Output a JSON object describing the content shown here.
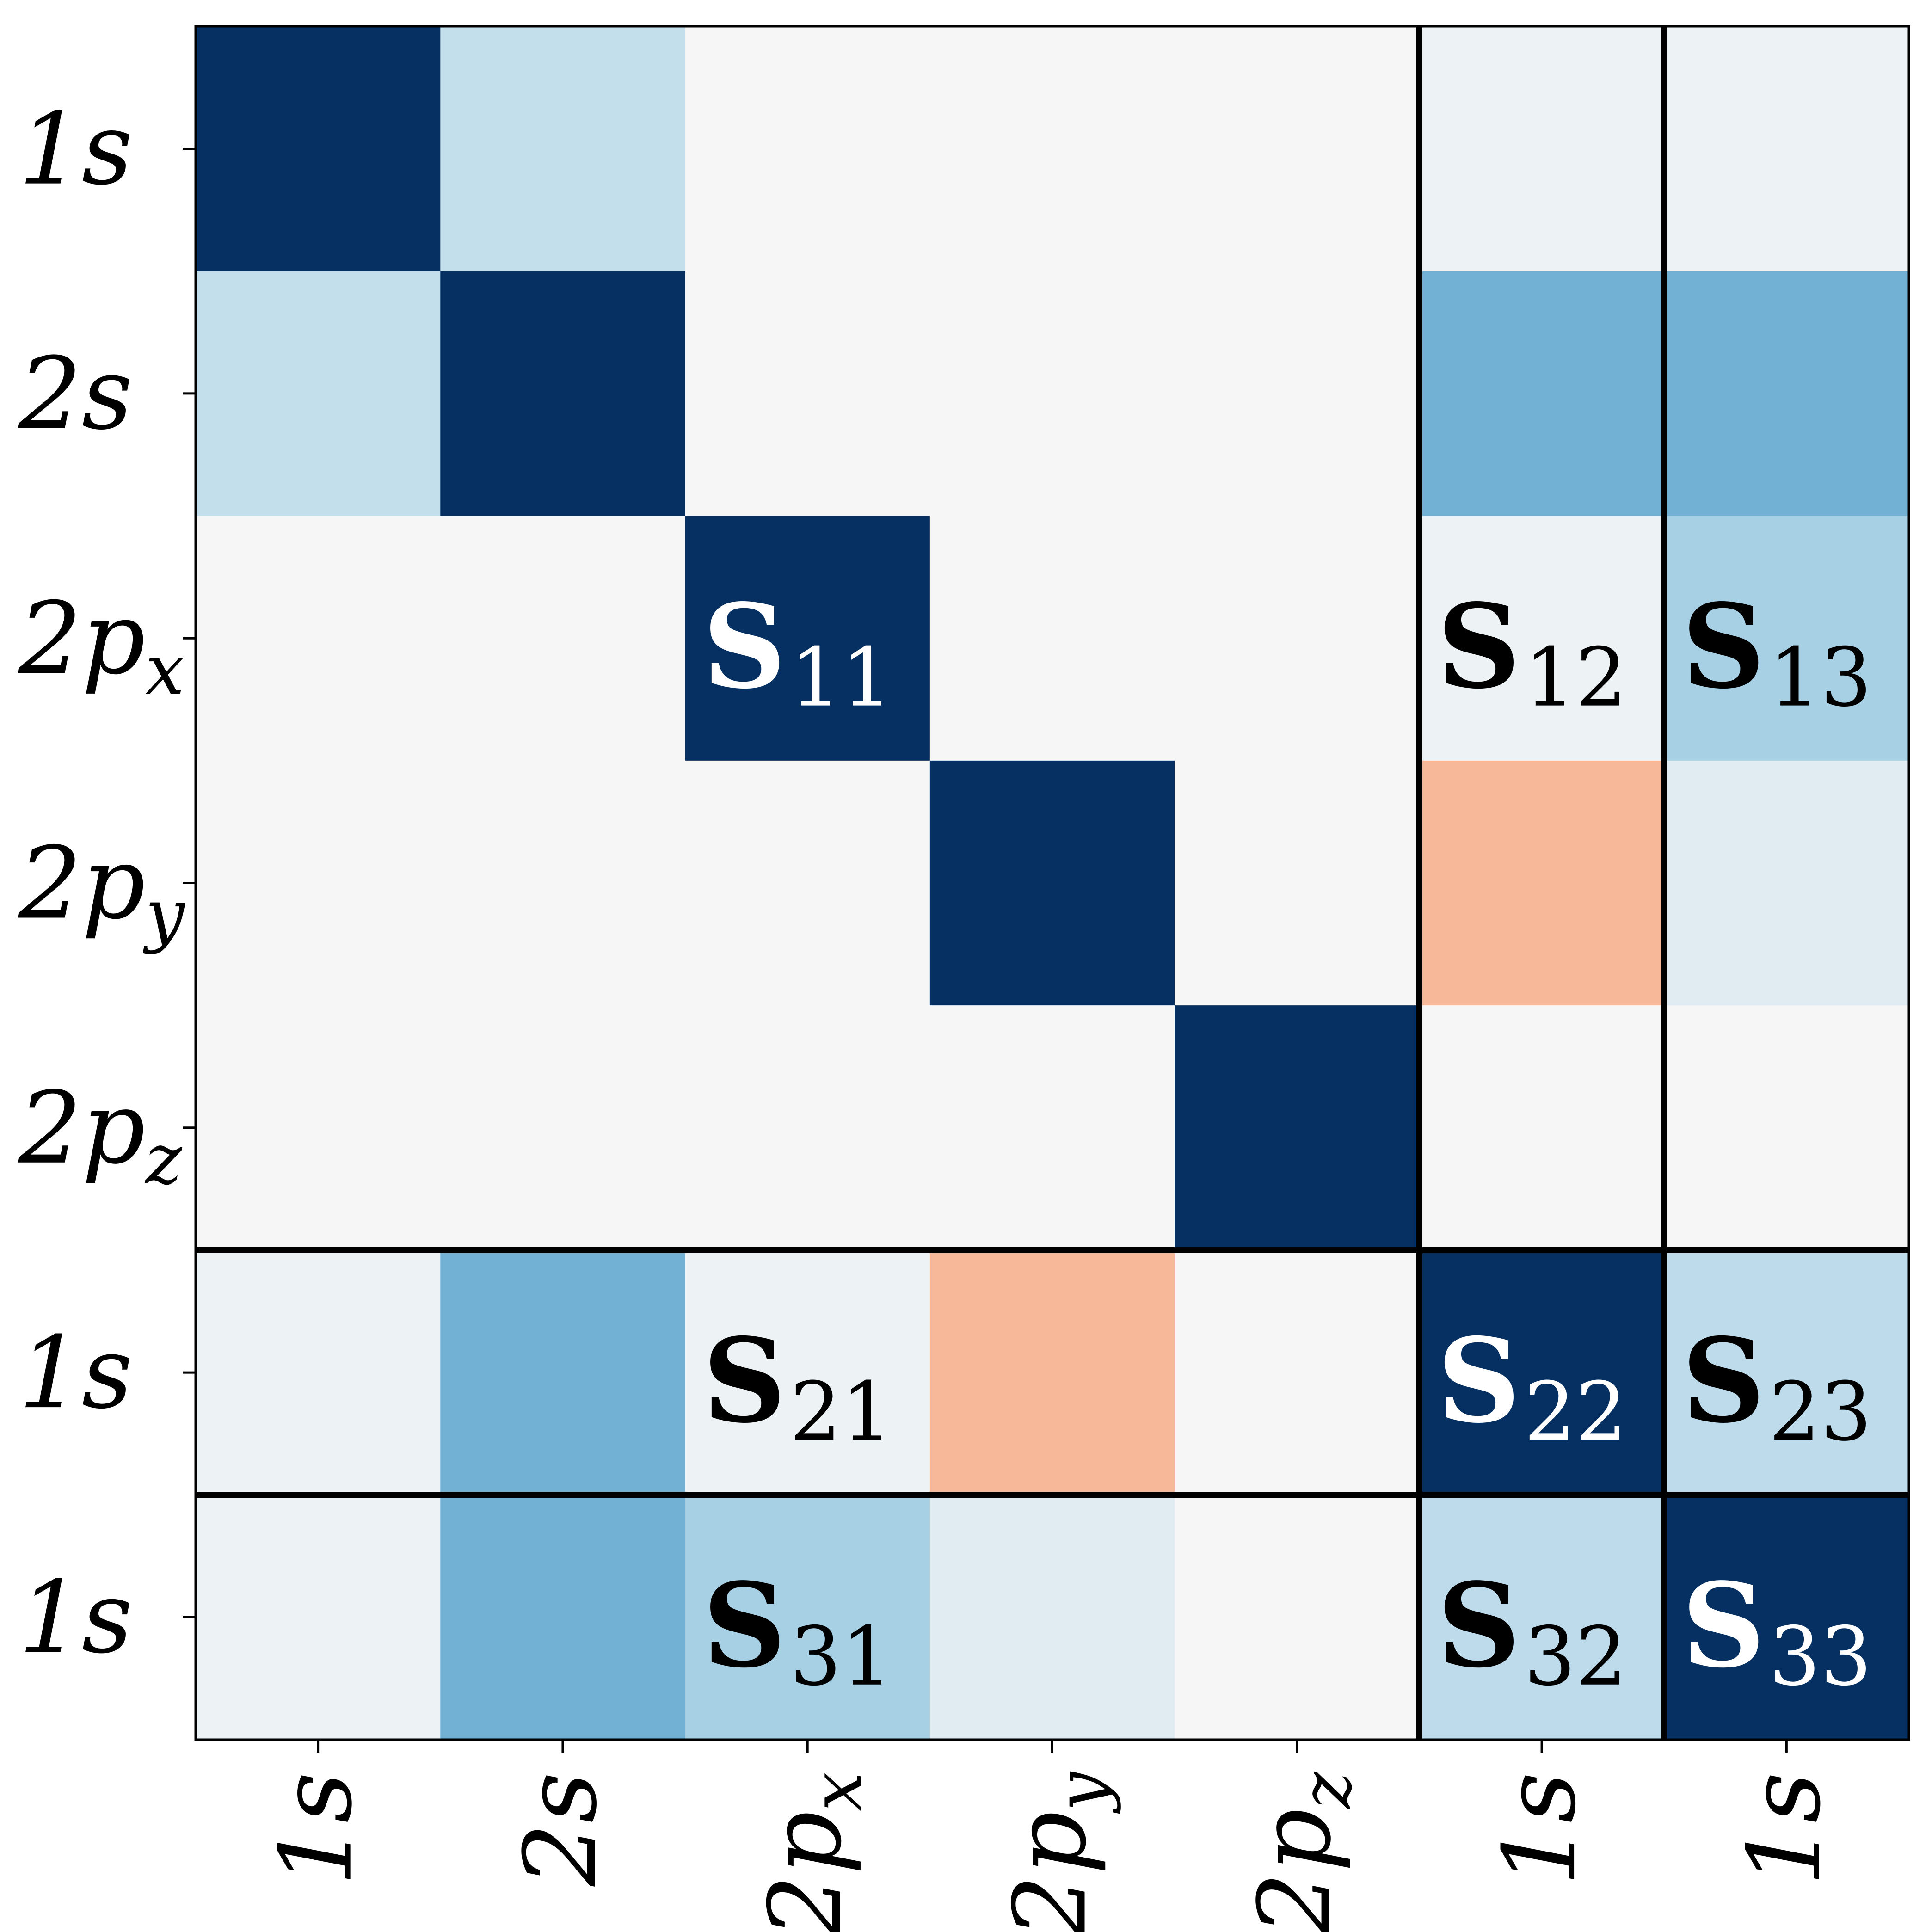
{
  "chart_data": {
    "type": "heatmap",
    "title": "",
    "xlabel": "",
    "ylabel": "",
    "row_labels": [
      {
        "main": "1s",
        "sub": ""
      },
      {
        "main": "2s",
        "sub": ""
      },
      {
        "main": "2p",
        "sub": "x"
      },
      {
        "main": "2p",
        "sub": "y"
      },
      {
        "main": "2p",
        "sub": "z"
      },
      {
        "main": "1s",
        "sub": ""
      },
      {
        "main": "1s",
        "sub": ""
      }
    ],
    "col_labels": [
      {
        "main": "1s",
        "sub": ""
      },
      {
        "main": "2s",
        "sub": ""
      },
      {
        "main": "2p",
        "sub": "x"
      },
      {
        "main": "2p",
        "sub": "y"
      },
      {
        "main": "2p",
        "sub": "z"
      },
      {
        "main": "1s",
        "sub": ""
      },
      {
        "main": "1s",
        "sub": ""
      }
    ],
    "values": [
      [
        1.0,
        0.24,
        0.0,
        0.0,
        0.0,
        0.05,
        0.05
      ],
      [
        0.24,
        1.0,
        0.0,
        0.0,
        0.0,
        0.48,
        0.48
      ],
      [
        0.0,
        0.0,
        1.0,
        0.0,
        0.0,
        0.05,
        0.33
      ],
      [
        0.0,
        0.0,
        0.0,
        1.0,
        0.0,
        -0.33,
        0.12
      ],
      [
        0.0,
        0.0,
        0.0,
        0.0,
        1.0,
        0.0,
        0.0
      ],
      [
        0.05,
        0.48,
        0.05,
        -0.33,
        0.0,
        1.0,
        0.26
      ],
      [
        0.05,
        0.48,
        0.33,
        0.12,
        0.0,
        0.26,
        1.0
      ]
    ],
    "value_range": [
      -1,
      1
    ],
    "colormap": "RdBu",
    "block_boundaries": [
      5,
      6
    ],
    "block_labels": [
      {
        "main": "S",
        "sub": "11",
        "row": 2,
        "col": 2,
        "color": "#ffffff"
      },
      {
        "main": "S",
        "sub": "12",
        "row": 2,
        "col": 5,
        "color": "#000000"
      },
      {
        "main": "S",
        "sub": "13",
        "row": 2,
        "col": 6,
        "color": "#000000"
      },
      {
        "main": "S",
        "sub": "21",
        "row": 5,
        "col": 2,
        "color": "#000000"
      },
      {
        "main": "S",
        "sub": "22",
        "row": 5,
        "col": 5,
        "color": "#ffffff"
      },
      {
        "main": "S",
        "sub": "23",
        "row": 5,
        "col": 6,
        "color": "#000000"
      },
      {
        "main": "S",
        "sub": "31",
        "row": 6,
        "col": 2,
        "color": "#000000"
      },
      {
        "main": "S",
        "sub": "32",
        "row": 6,
        "col": 5,
        "color": "#000000"
      },
      {
        "main": "S",
        "sub": "33",
        "row": 6,
        "col": 6,
        "color": "#ffffff"
      }
    ]
  }
}
